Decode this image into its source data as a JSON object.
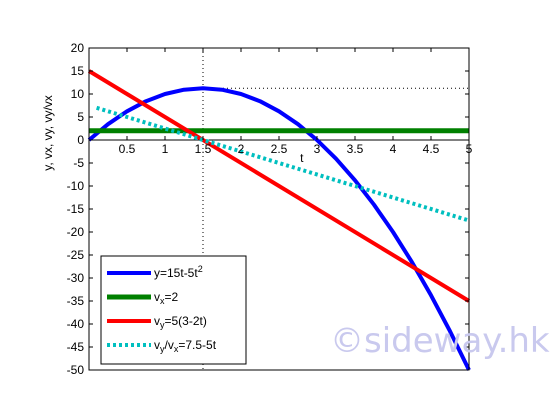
{
  "watermark": "©sideway.hk",
  "chart_data": {
    "type": "line",
    "xlabel": "t",
    "ylabel": "y, vx, vy, vy/vx",
    "xlim": [
      0,
      5
    ],
    "ylim": [
      -50,
      20
    ],
    "x_ticks": [
      0.5,
      1,
      1.5,
      2,
      2.5,
      3,
      3.5,
      4,
      4.5,
      5
    ],
    "x_tick_labels": [
      "0.5",
      "1",
      "1.5",
      "2",
      "2.5",
      "3",
      "3.5",
      "4",
      "4.5",
      "5"
    ],
    "y_ticks": [
      20,
      15,
      10,
      5,
      0,
      -5,
      -10,
      -15,
      -20,
      -25,
      -30,
      -35,
      -40,
      -45,
      -50
    ],
    "y_tick_labels": [
      "20",
      "15",
      "10",
      "5",
      "0",
      "-5",
      "-10",
      "-15",
      "-20",
      "-25",
      "-30",
      "-35",
      "-40",
      "-45",
      "-50"
    ],
    "legend_position": "bottom-left",
    "reference_lines": [
      {
        "orientation": "vertical",
        "value": 1.5,
        "style": "dotted",
        "color": "#000000"
      },
      {
        "orientation": "horizontal",
        "value": 11.25,
        "style": "dotted",
        "color": "#000000",
        "from_x": 1.5,
        "to_x": 5
      }
    ],
    "series": [
      {
        "name_parts": [
          {
            "t": "y=15t-5t"
          },
          {
            "t": "2",
            "s": "sup"
          }
        ],
        "color": "#0000ff",
        "style": "solid",
        "width": 4,
        "x": [
          0,
          0.25,
          0.5,
          0.75,
          1,
          1.25,
          1.5,
          1.75,
          2,
          2.25,
          2.5,
          2.75,
          3,
          3.25,
          3.5,
          3.75,
          4,
          4.25,
          4.5,
          4.75,
          5
        ],
        "y": [
          0,
          3.44,
          6.25,
          8.44,
          10,
          10.94,
          11.25,
          10.94,
          10,
          8.44,
          6.25,
          3.44,
          0,
          -4.06,
          -8.75,
          -14.06,
          -20,
          -26.56,
          -33.75,
          -41.56,
          -50
        ]
      },
      {
        "name_parts": [
          {
            "t": "v"
          },
          {
            "t": "x",
            "s": "sub"
          },
          {
            "t": "=2"
          }
        ],
        "color": "#008000",
        "style": "solid",
        "width": 5,
        "x": [
          0,
          5
        ],
        "y": [
          2,
          2
        ]
      },
      {
        "name_parts": [
          {
            "t": "v"
          },
          {
            "t": "y",
            "s": "sub"
          },
          {
            "t": "=5(3-2t)"
          }
        ],
        "color": "#ff0000",
        "style": "solid",
        "width": 4,
        "x": [
          0,
          5
        ],
        "y": [
          15,
          -35
        ]
      },
      {
        "name_parts": [
          {
            "t": "v"
          },
          {
            "t": "y",
            "s": "sub"
          },
          {
            "t": "/v"
          },
          {
            "t": "x",
            "s": "sub"
          },
          {
            "t": "=7.5-5t"
          }
        ],
        "color": "#00bfbf",
        "style": "dotted",
        "width": 4,
        "x": [
          0.1,
          5
        ],
        "y": [
          7.0,
          -17.5
        ]
      }
    ]
  }
}
